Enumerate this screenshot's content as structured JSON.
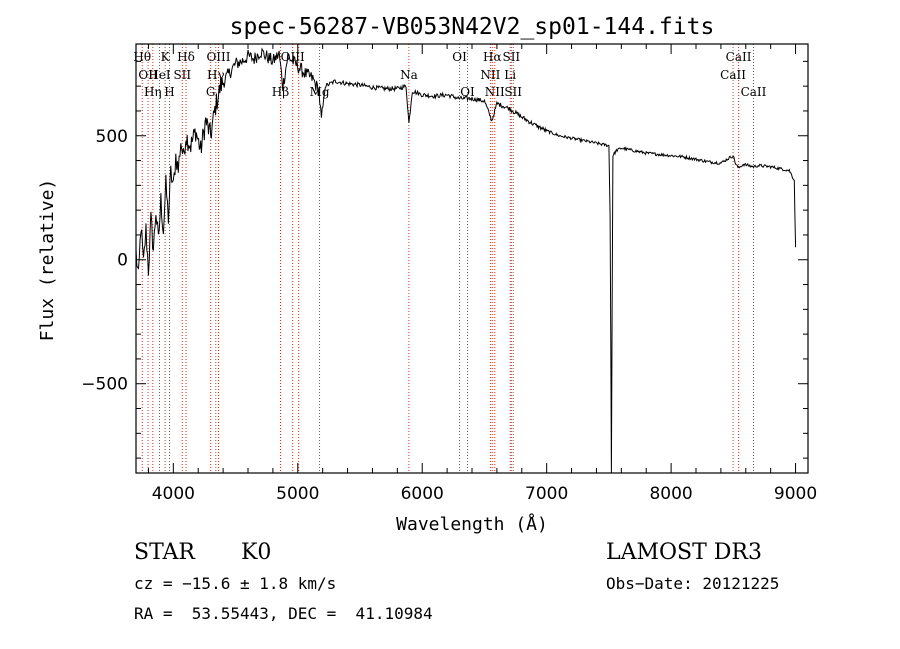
{
  "chart_data": {
    "type": "line",
    "title": "spec-56287-VB053N42V2_sp01-144.fits",
    "xlabel": "Wavelength (Å)",
    "ylabel": "Flux (relative)",
    "xlim": [
      3700,
      9100
    ],
    "ylim": [
      -860,
      870
    ],
    "xticks": [
      4000,
      5000,
      6000,
      7000,
      8000,
      9000
    ],
    "yticks": [
      -500,
      0,
      500
    ],
    "xtick_labels": [
      "4000",
      "5000",
      "6000",
      "7000",
      "8000",
      "9000"
    ],
    "ytick_labels": [
      "−500",
      "0",
      "500"
    ],
    "series": [
      {
        "name": "flux",
        "points": [
          [
            3700,
            30
          ],
          [
            3720,
            -80
          ],
          [
            3740,
            140
          ],
          [
            3760,
            -20
          ],
          [
            3780,
            120
          ],
          [
            3800,
            -40
          ],
          [
            3820,
            160
          ],
          [
            3840,
            40
          ],
          [
            3860,
            200
          ],
          [
            3880,
            70
          ],
          [
            3900,
            240
          ],
          [
            3920,
            120
          ],
          [
            3940,
            300
          ],
          [
            3960,
            170
          ],
          [
            3980,
            350
          ],
          [
            4000,
            290
          ],
          [
            4020,
            420
          ],
          [
            4040,
            360
          ],
          [
            4060,
            480
          ],
          [
            4080,
            410
          ],
          [
            4100,
            500
          ],
          [
            4140,
            460
          ],
          [
            4180,
            520
          ],
          [
            4220,
            440
          ],
          [
            4260,
            560
          ],
          [
            4300,
            500
          ],
          [
            4340,
            620
          ],
          [
            4380,
            700
          ],
          [
            4420,
            730
          ],
          [
            4460,
            760
          ],
          [
            4500,
            790
          ],
          [
            4550,
            800
          ],
          [
            4600,
            820
          ],
          [
            4650,
            810
          ],
          [
            4700,
            840
          ],
          [
            4750,
            820
          ],
          [
            4800,
            800
          ],
          [
            4850,
            830
          ],
          [
            4880,
            700
          ],
          [
            4920,
            820
          ],
          [
            5000,
            780
          ],
          [
            5060,
            750
          ],
          [
            5120,
            730
          ],
          [
            5170,
            680
          ],
          [
            5190,
            560
          ],
          [
            5220,
            700
          ],
          [
            5300,
            720
          ],
          [
            5400,
            710
          ],
          [
            5500,
            705
          ],
          [
            5600,
            695
          ],
          [
            5700,
            690
          ],
          [
            5800,
            690
          ],
          [
            5870,
            700
          ],
          [
            5893,
            550
          ],
          [
            5920,
            680
          ],
          [
            6000,
            665
          ],
          [
            6100,
            660
          ],
          [
            6200,
            665
          ],
          [
            6300,
            650
          ],
          [
            6400,
            650
          ],
          [
            6500,
            640
          ],
          [
            6560,
            560
          ],
          [
            6600,
            630
          ],
          [
            6700,
            610
          ],
          [
            6800,
            575
          ],
          [
            6900,
            545
          ],
          [
            7000,
            520
          ],
          [
            7100,
            500
          ],
          [
            7200,
            490
          ],
          [
            7300,
            480
          ],
          [
            7400,
            470
          ],
          [
            7500,
            460
          ],
          [
            7510,
            180
          ],
          [
            7520,
            -860
          ],
          [
            7532,
            420
          ],
          [
            7560,
            440
          ],
          [
            7600,
            450
          ],
          [
            7700,
            440
          ],
          [
            7800,
            430
          ],
          [
            7900,
            425
          ],
          [
            8000,
            420
          ],
          [
            8100,
            415
          ],
          [
            8200,
            405
          ],
          [
            8300,
            395
          ],
          [
            8400,
            390
          ],
          [
            8498,
            420
          ],
          [
            8520,
            385
          ],
          [
            8542,
            370
          ],
          [
            8580,
            385
          ],
          [
            8662,
            375
          ],
          [
            8700,
            380
          ],
          [
            8800,
            375
          ],
          [
            8900,
            365
          ],
          [
            8950,
            360
          ],
          [
            8990,
            320
          ],
          [
            9000,
            50
          ]
        ]
      }
    ],
    "lines": [
      {
        "w": 3750,
        "labels": [
          {
            "t": "Hθ",
            "row": 0
          }
        ]
      },
      {
        "w": 3797,
        "labels": [
          {
            "t": "OII",
            "row": 1
          }
        ]
      },
      {
        "w": 3835,
        "labels": [
          {
            "t": "Hη",
            "row": 2
          }
        ]
      },
      {
        "w": 3889,
        "labels": [
          {
            "t": "HeI",
            "row": 1
          }
        ]
      },
      {
        "w": 3934,
        "labels": [
          {
            "t": "K",
            "row": 0
          }
        ]
      },
      {
        "w": 3969,
        "labels": [
          {
            "t": "H",
            "row": 2
          }
        ]
      },
      {
        "w": 4072,
        "labels": [
          {
            "t": "SII",
            "row": 1
          }
        ]
      },
      {
        "w": 4102,
        "labels": [
          {
            "t": "Hδ",
            "row": 0
          }
        ]
      },
      {
        "w": 4300,
        "labels": [
          {
            "t": "G",
            "row": 2
          }
        ]
      },
      {
        "w": 4341,
        "labels": [
          {
            "t": "Hγ",
            "row": 1
          }
        ]
      },
      {
        "w": 4363,
        "labels": [
          {
            "t": "OIII",
            "row": 0
          }
        ]
      },
      {
        "w": 4861,
        "labels": [
          {
            "t": "Hβ",
            "row": 2
          }
        ]
      },
      {
        "w": 4959,
        "labels": [
          {
            "t": "OIII",
            "row": 0
          }
        ]
      },
      {
        "w": 5007,
        "labels": []
      },
      {
        "w": 5175,
        "labels": [
          {
            "t": "Mg",
            "row": 2
          }
        ]
      },
      {
        "w": 5893,
        "labels": [
          {
            "t": "Na",
            "row": 1
          }
        ]
      },
      {
        "w": 6300,
        "labels": [
          {
            "t": "OI",
            "row": 0
          }
        ]
      },
      {
        "w": 6364,
        "labels": [
          {
            "t": "OI",
            "row": 2
          }
        ]
      },
      {
        "w": 6548,
        "labels": [
          {
            "t": "NII",
            "row": 1
          }
        ]
      },
      {
        "w": 6563,
        "labels": [
          {
            "t": "Hα",
            "row": 0
          }
        ]
      },
      {
        "w": 6583,
        "labels": [
          {
            "t": "NII",
            "row": 2
          }
        ]
      },
      {
        "w": 6707,
        "labels": [
          {
            "t": "Li",
            "row": 1
          }
        ]
      },
      {
        "w": 6716,
        "labels": [
          {
            "t": "SII",
            "row": 0
          }
        ]
      },
      {
        "w": 6731,
        "labels": [
          {
            "t": "SII",
            "row": 2
          }
        ]
      },
      {
        "w": 8498,
        "labels": [
          {
            "t": "CaII",
            "row": 1
          }
        ]
      },
      {
        "w": 8542,
        "labels": [
          {
            "t": "CaII",
            "row": 0
          }
        ]
      },
      {
        "w": 8662,
        "labels": [
          {
            "t": "CaII",
            "row": 2
          }
        ]
      }
    ]
  },
  "info": {
    "class": "STAR",
    "subclass": "K0",
    "survey": "LAMOST DR3",
    "cz": "cz = −15.6 ± 1.8 km/s",
    "obs_date": "Obs−Date: 20121225",
    "radec": "RA =  53.55443, DEC =  41.10984"
  }
}
